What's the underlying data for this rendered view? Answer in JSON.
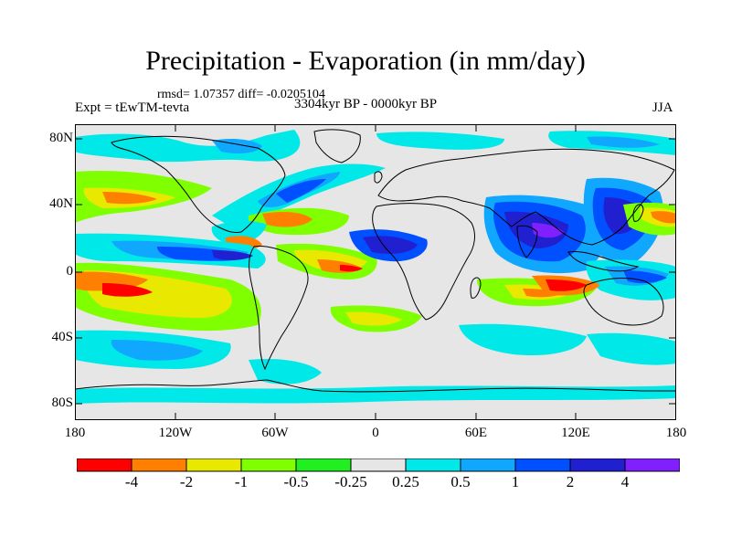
{
  "title": "Precipitation - Evaporation (in mm/day)",
  "stats_line": "rmsd= 1.07357 diff= -0.0205104",
  "experiment": "Expt = tEwTM-tevta",
  "period": "3304kyr BP - 0000kyr BP",
  "season": "JJA",
  "lat_ticks": [
    "80N",
    "40N",
    "0",
    "40S",
    "80S"
  ],
  "lon_ticks": [
    "180",
    "120W",
    "60W",
    "0",
    "60E",
    "120E",
    "180"
  ],
  "colorbar": {
    "labels": [
      "-4",
      "-2",
      "-1",
      "-0.5",
      "-0.25",
      "0.25",
      "0.5",
      "1",
      "2",
      "4"
    ],
    "colors": [
      "#ff0000",
      "#ff8000",
      "#e8e800",
      "#80ff00",
      "#20f020",
      "#e6e6e6",
      "#00e8e8",
      "#10a8ff",
      "#0050ff",
      "#2020d0",
      "#8020ff"
    ]
  }
}
